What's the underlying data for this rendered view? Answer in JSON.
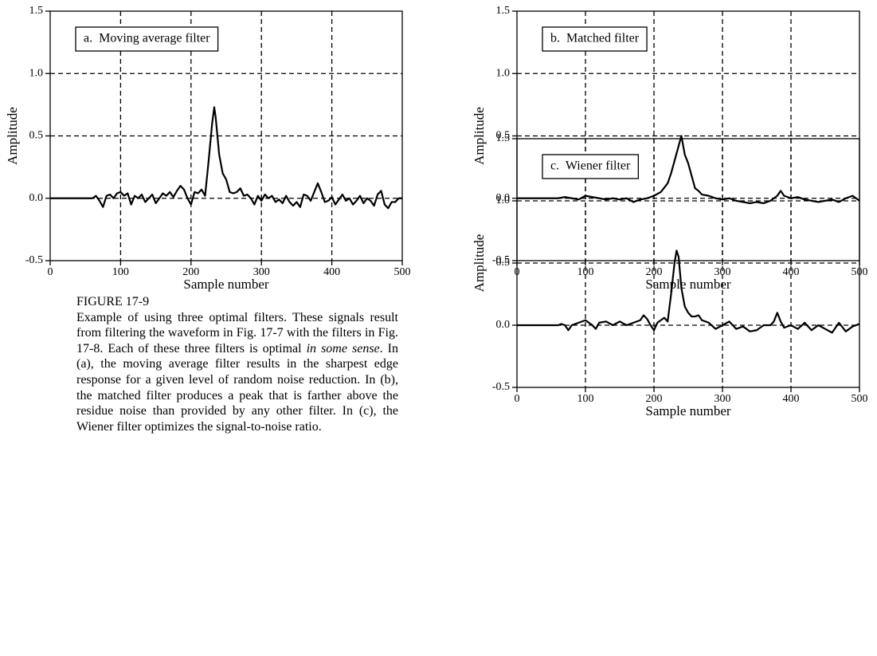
{
  "chart_data": [
    {
      "type": "line",
      "annotation": "a.  Moving average filter",
      "xlabel": "Sample number",
      "ylabel": "Amplitude",
      "xlim": [
        0,
        500
      ],
      "ylim": [
        -0.5,
        1.5
      ],
      "xticks": [
        0,
        100,
        200,
        300,
        400,
        500
      ],
      "yticks": [
        -0.5,
        {
          "value": 0,
          "label": "0.0"
        },
        0.5,
        {
          "value": 1,
          "label": "1.0"
        },
        1.5
      ],
      "grid": true,
      "color": "#000000",
      "x": [
        0,
        60,
        65,
        70,
        75,
        80,
        85,
        90,
        95,
        100,
        105,
        110,
        115,
        120,
        125,
        130,
        135,
        140,
        145,
        150,
        155,
        160,
        165,
        170,
        175,
        180,
        185,
        190,
        195,
        200,
        205,
        210,
        215,
        220,
        225,
        230,
        233,
        235,
        240,
        245,
        250,
        255,
        260,
        265,
        270,
        275,
        280,
        285,
        290,
        295,
        300,
        305,
        310,
        315,
        320,
        325,
        330,
        335,
        340,
        345,
        350,
        355,
        360,
        365,
        370,
        375,
        380,
        385,
        390,
        395,
        400,
        405,
        410,
        415,
        420,
        425,
        430,
        435,
        440,
        445,
        450,
        455,
        460,
        465,
        470,
        475,
        480,
        485,
        490,
        495,
        500
      ],
      "values": [
        0,
        0,
        0.02,
        -0.02,
        -0.07,
        0.02,
        0.03,
        0,
        0.04,
        0.05,
        0.02,
        0.04,
        -0.05,
        0.02,
        0,
        0.03,
        -0.03,
        0,
        0.03,
        -0.04,
        0,
        0.04,
        0.02,
        0.05,
        0.01,
        0.06,
        0.1,
        0.07,
        0,
        -0.05,
        0.05,
        0.04,
        0.07,
        0.02,
        0.3,
        0.6,
        0.73,
        0.65,
        0.35,
        0.2,
        0.15,
        0.05,
        0.04,
        0.05,
        0.08,
        0.02,
        0.03,
        0,
        -0.05,
        0.02,
        -0.02,
        0.03,
        0,
        0.02,
        -0.03,
        -0.01,
        -0.04,
        0.02,
        -0.03,
        -0.06,
        -0.03,
        -0.07,
        0.03,
        0.02,
        -0.02,
        0.05,
        0.12,
        0.05,
        -0.03,
        -0.02,
        0.01,
        -0.05,
        -0.01,
        0.03,
        -0.02,
        0,
        -0.05,
        -0.02,
        0.02,
        -0.04,
        0,
        -0.02,
        -0.06,
        0.03,
        0.06,
        -0.05,
        -0.08,
        -0.03,
        -0.03,
        0,
        0
      ]
    },
    {
      "type": "line",
      "annotation": "b.  Matched filter",
      "xlabel": "Sample number",
      "ylabel": "Amplitude",
      "xlim": [
        0,
        500
      ],
      "ylim": [
        -0.5,
        1.5
      ],
      "xticks": [
        0,
        100,
        200,
        300,
        400,
        500
      ],
      "yticks": [
        -0.5,
        {
          "value": 0,
          "label": "0.0"
        },
        0.5,
        {
          "value": 1,
          "label": "1.0"
        },
        1.5
      ],
      "grid": true,
      "color": "#000000",
      "x": [
        0,
        60,
        70,
        80,
        90,
        100,
        110,
        120,
        130,
        140,
        150,
        160,
        170,
        180,
        190,
        200,
        210,
        220,
        225,
        230,
        235,
        240,
        245,
        250,
        255,
        260,
        265,
        270,
        280,
        290,
        300,
        310,
        320,
        330,
        340,
        350,
        360,
        370,
        380,
        385,
        390,
        400,
        410,
        420,
        430,
        440,
        450,
        460,
        470,
        480,
        490,
        495,
        500
      ],
      "values": [
        0,
        0,
        0.01,
        0,
        -0.01,
        0.02,
        0.01,
        0,
        -0.01,
        0,
        -0.01,
        0,
        -0.03,
        -0.01,
        0,
        0.02,
        0.05,
        0.12,
        0.2,
        0.3,
        0.4,
        0.5,
        0.35,
        0.28,
        0.18,
        0.08,
        0.06,
        0.03,
        0.02,
        0,
        -0.01,
        0,
        -0.02,
        -0.03,
        -0.04,
        -0.03,
        -0.04,
        -0.02,
        0.02,
        0.06,
        0.02,
        0,
        0.01,
        -0.01,
        -0.02,
        -0.03,
        -0.02,
        -0.01,
        -0.03,
        0,
        0.02,
        0,
        -0.02
      ]
    },
    {
      "type": "line",
      "annotation": "c.  Wiener filter",
      "xlabel": "Sample number",
      "ylabel": "Amplitude",
      "xlim": [
        0,
        500
      ],
      "ylim": [
        -0.5,
        1.5
      ],
      "xticks": [
        0,
        100,
        200,
        300,
        400,
        500
      ],
      "yticks": [
        -0.5,
        {
          "value": 0,
          "label": "0.0"
        },
        0.5,
        {
          "value": 1,
          "label": "1.0"
        },
        1.5
      ],
      "grid": true,
      "color": "#000000",
      "x": [
        0,
        60,
        65,
        70,
        75,
        80,
        90,
        100,
        110,
        115,
        120,
        130,
        140,
        150,
        160,
        170,
        180,
        185,
        190,
        195,
        200,
        205,
        210,
        215,
        220,
        225,
        230,
        233,
        236,
        240,
        245,
        250,
        255,
        260,
        265,
        270,
        280,
        290,
        300,
        310,
        320,
        330,
        340,
        350,
        360,
        370,
        375,
        380,
        385,
        390,
        400,
        410,
        420,
        430,
        440,
        450,
        460,
        470,
        480,
        490,
        500
      ],
      "values": [
        0,
        0,
        0.01,
        0,
        -0.04,
        0,
        0.02,
        0.04,
        0,
        -0.03,
        0.02,
        0.03,
        0,
        0.03,
        0,
        0.02,
        0.04,
        0.08,
        0.05,
        0,
        -0.04,
        0.02,
        0.04,
        0.06,
        0.03,
        0.25,
        0.5,
        0.6,
        0.55,
        0.3,
        0.15,
        0.1,
        0.07,
        0.07,
        0.08,
        0.04,
        0.02,
        -0.03,
        0,
        0.03,
        -0.03,
        -0.01,
        -0.05,
        -0.04,
        0,
        0,
        0.03,
        0.1,
        0.03,
        -0.02,
        0,
        -0.03,
        0.02,
        -0.04,
        0,
        -0.03,
        -0.06,
        0.02,
        -0.05,
        -0.01,
        0.01
      ]
    }
  ],
  "caption": {
    "label": "FIGURE 17-9",
    "body": [
      "Example of using three optimal filters.  These signals result from filtering the waveform in Fig. 17-7 with the filters in  Fig. 17-8. Each of these three filters is optimal ",
      "in some sense",
      ". In (a), the moving average filter results in the sharpest edge response for a given level of random noise reduction.  In (b), the matched filter produces a peak that is farther above the residue noise than provided by any other filter.  In (c), the Wiener filter optimizes the signal-to-noise ratio."
    ]
  }
}
